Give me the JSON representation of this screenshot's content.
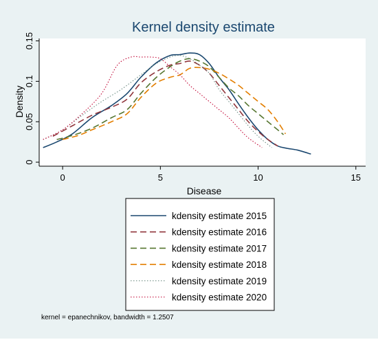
{
  "chart_data": {
    "type": "line",
    "title": "Kernel density estimate",
    "xlabel": "Disease",
    "ylabel": "Density",
    "xlim": [
      -1.2,
      15.5
    ],
    "ylim": [
      -0.005,
      0.153
    ],
    "xticks": [
      0,
      5,
      10,
      15
    ],
    "xtick_labels": [
      "0",
      "5",
      "10",
      "15"
    ],
    "yticks": [
      0,
      0.05,
      0.1,
      0.15
    ],
    "ytick_labels": [
      "0",
      "0.05",
      "0.1",
      "0.15"
    ],
    "grid": false,
    "legend_position": "bottom",
    "note": "kernel = epanechnikov, bandwidth = 1.2507",
    "series": [
      {
        "name": "kdensity estimate 2015",
        "color": "#1a476f",
        "dash": "solid",
        "x": [
          -1,
          -0.3,
          0.5,
          1.5,
          2.5,
          3.3,
          4,
          4.8,
          5.5,
          6,
          6.5,
          7,
          7.5,
          8,
          8.5,
          9,
          9.5,
          10,
          10.5,
          11,
          11.5,
          12,
          12.7
        ],
        "y": [
          0.018,
          0.025,
          0.035,
          0.055,
          0.07,
          0.085,
          0.105,
          0.123,
          0.132,
          0.133,
          0.135,
          0.133,
          0.122,
          0.105,
          0.09,
          0.072,
          0.055,
          0.04,
          0.028,
          0.02,
          0.017,
          0.015,
          0.01
        ]
      },
      {
        "name": "kdensity estimate 2016",
        "color": "#90353b",
        "dash": "long",
        "x": [
          -0.5,
          0.5,
          1.5,
          2.5,
          3.3,
          4,
          4.8,
          5.5,
          6,
          6.5,
          7,
          7.5,
          8,
          8.5,
          9,
          9.5,
          10,
          10.5,
          11
        ],
        "y": [
          0.032,
          0.045,
          0.058,
          0.068,
          0.078,
          0.098,
          0.112,
          0.12,
          0.122,
          0.125,
          0.12,
          0.11,
          0.095,
          0.08,
          0.065,
          0.05,
          0.038,
          0.028,
          0.02
        ]
      },
      {
        "name": "kdensity estimate 2017",
        "color": "#55752f",
        "dash": "long",
        "x": [
          -0.3,
          0.5,
          1.5,
          2.5,
          3.3,
          4,
          4.8,
          5.5,
          6,
          6.5,
          7,
          7.5,
          8,
          8.5,
          9,
          9.5,
          10,
          10.5,
          11,
          11.3
        ],
        "y": [
          0.028,
          0.033,
          0.042,
          0.055,
          0.065,
          0.085,
          0.105,
          0.118,
          0.125,
          0.128,
          0.125,
          0.118,
          0.105,
          0.092,
          0.082,
          0.07,
          0.06,
          0.05,
          0.04,
          0.034
        ]
      },
      {
        "name": "kdensity estimate 2018",
        "color": "#e37e00",
        "dash": "long",
        "x": [
          0,
          0.8,
          1.5,
          2.5,
          3.3,
          4,
          4.8,
          5.5,
          6,
          6.5,
          7,
          7.5,
          8,
          8.5,
          9,
          9.5,
          10,
          10.5,
          11,
          11.4
        ],
        "y": [
          0.028,
          0.033,
          0.04,
          0.05,
          0.06,
          0.08,
          0.098,
          0.105,
          0.108,
          0.116,
          0.117,
          0.115,
          0.11,
          0.103,
          0.095,
          0.085,
          0.075,
          0.065,
          0.05,
          0.035
        ]
      },
      {
        "name": "kdensity estimate 2019",
        "color": "#6e8e84",
        "dash": "dot",
        "x": [
          -1,
          0,
          1,
          2,
          3,
          4,
          4.8,
          5.5,
          6,
          6.5,
          7,
          7.5,
          8,
          8.5,
          9,
          9.5,
          10,
          10.7
        ],
        "y": [
          0.028,
          0.04,
          0.058,
          0.075,
          0.09,
          0.108,
          0.122,
          0.13,
          0.132,
          0.128,
          0.12,
          0.11,
          0.09,
          0.075,
          0.06,
          0.045,
          0.032,
          0.018
        ]
      },
      {
        "name": "kdensity estimate 2020",
        "color": "#c10534",
        "dash": "dot",
        "x": [
          -1,
          0,
          1,
          2,
          2.8,
          3.5,
          4,
          4.5,
          5,
          5.5,
          6,
          6.5,
          7,
          7.5,
          8,
          8.5,
          9,
          9.5,
          10.2
        ],
        "y": [
          0.028,
          0.04,
          0.06,
          0.085,
          0.12,
          0.13,
          0.13,
          0.13,
          0.128,
          0.118,
          0.108,
          0.095,
          0.085,
          0.075,
          0.065,
          0.055,
          0.042,
          0.03,
          0.018
        ]
      }
    ]
  }
}
